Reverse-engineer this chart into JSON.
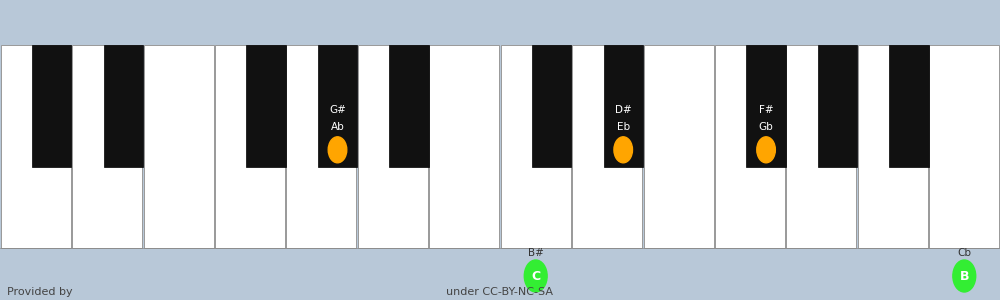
{
  "fig_width": 10.0,
  "fig_height": 3.0,
  "dpi": 100,
  "bg_color": "#b8c8d8",
  "white_key_color": "#ffffff",
  "black_key_color": "#111111",
  "white_key_border": "#999999",
  "orange_dot": "#FFA500",
  "green_dot": "#33ee33",
  "footer_text1": "Provided by",
  "footer_text2": "under CC-BY-NC-SA",
  "footer_color": "#444444",
  "num_white_keys": 14,
  "note_markers": [
    {
      "type": "black",
      "after_white": 4,
      "label1": "G#",
      "label2": "Ab",
      "dot_color": "#FFA500",
      "dot_label": ""
    },
    {
      "type": "white",
      "white_idx": 7,
      "label1": "B#",
      "label2": "",
      "dot_color": "#33ee33",
      "dot_label": "C"
    },
    {
      "type": "black",
      "after_white": 8,
      "label1": "D#",
      "label2": "Eb",
      "dot_color": "#FFA500",
      "dot_label": ""
    },
    {
      "type": "black",
      "after_white": 10,
      "label1": "F#",
      "label2": "Gb",
      "dot_color": "#FFA500",
      "dot_label": ""
    },
    {
      "type": "white",
      "white_idx": 13,
      "label1": "Cb",
      "label2": "",
      "dot_color": "#33ee33",
      "dot_label": "B"
    }
  ]
}
